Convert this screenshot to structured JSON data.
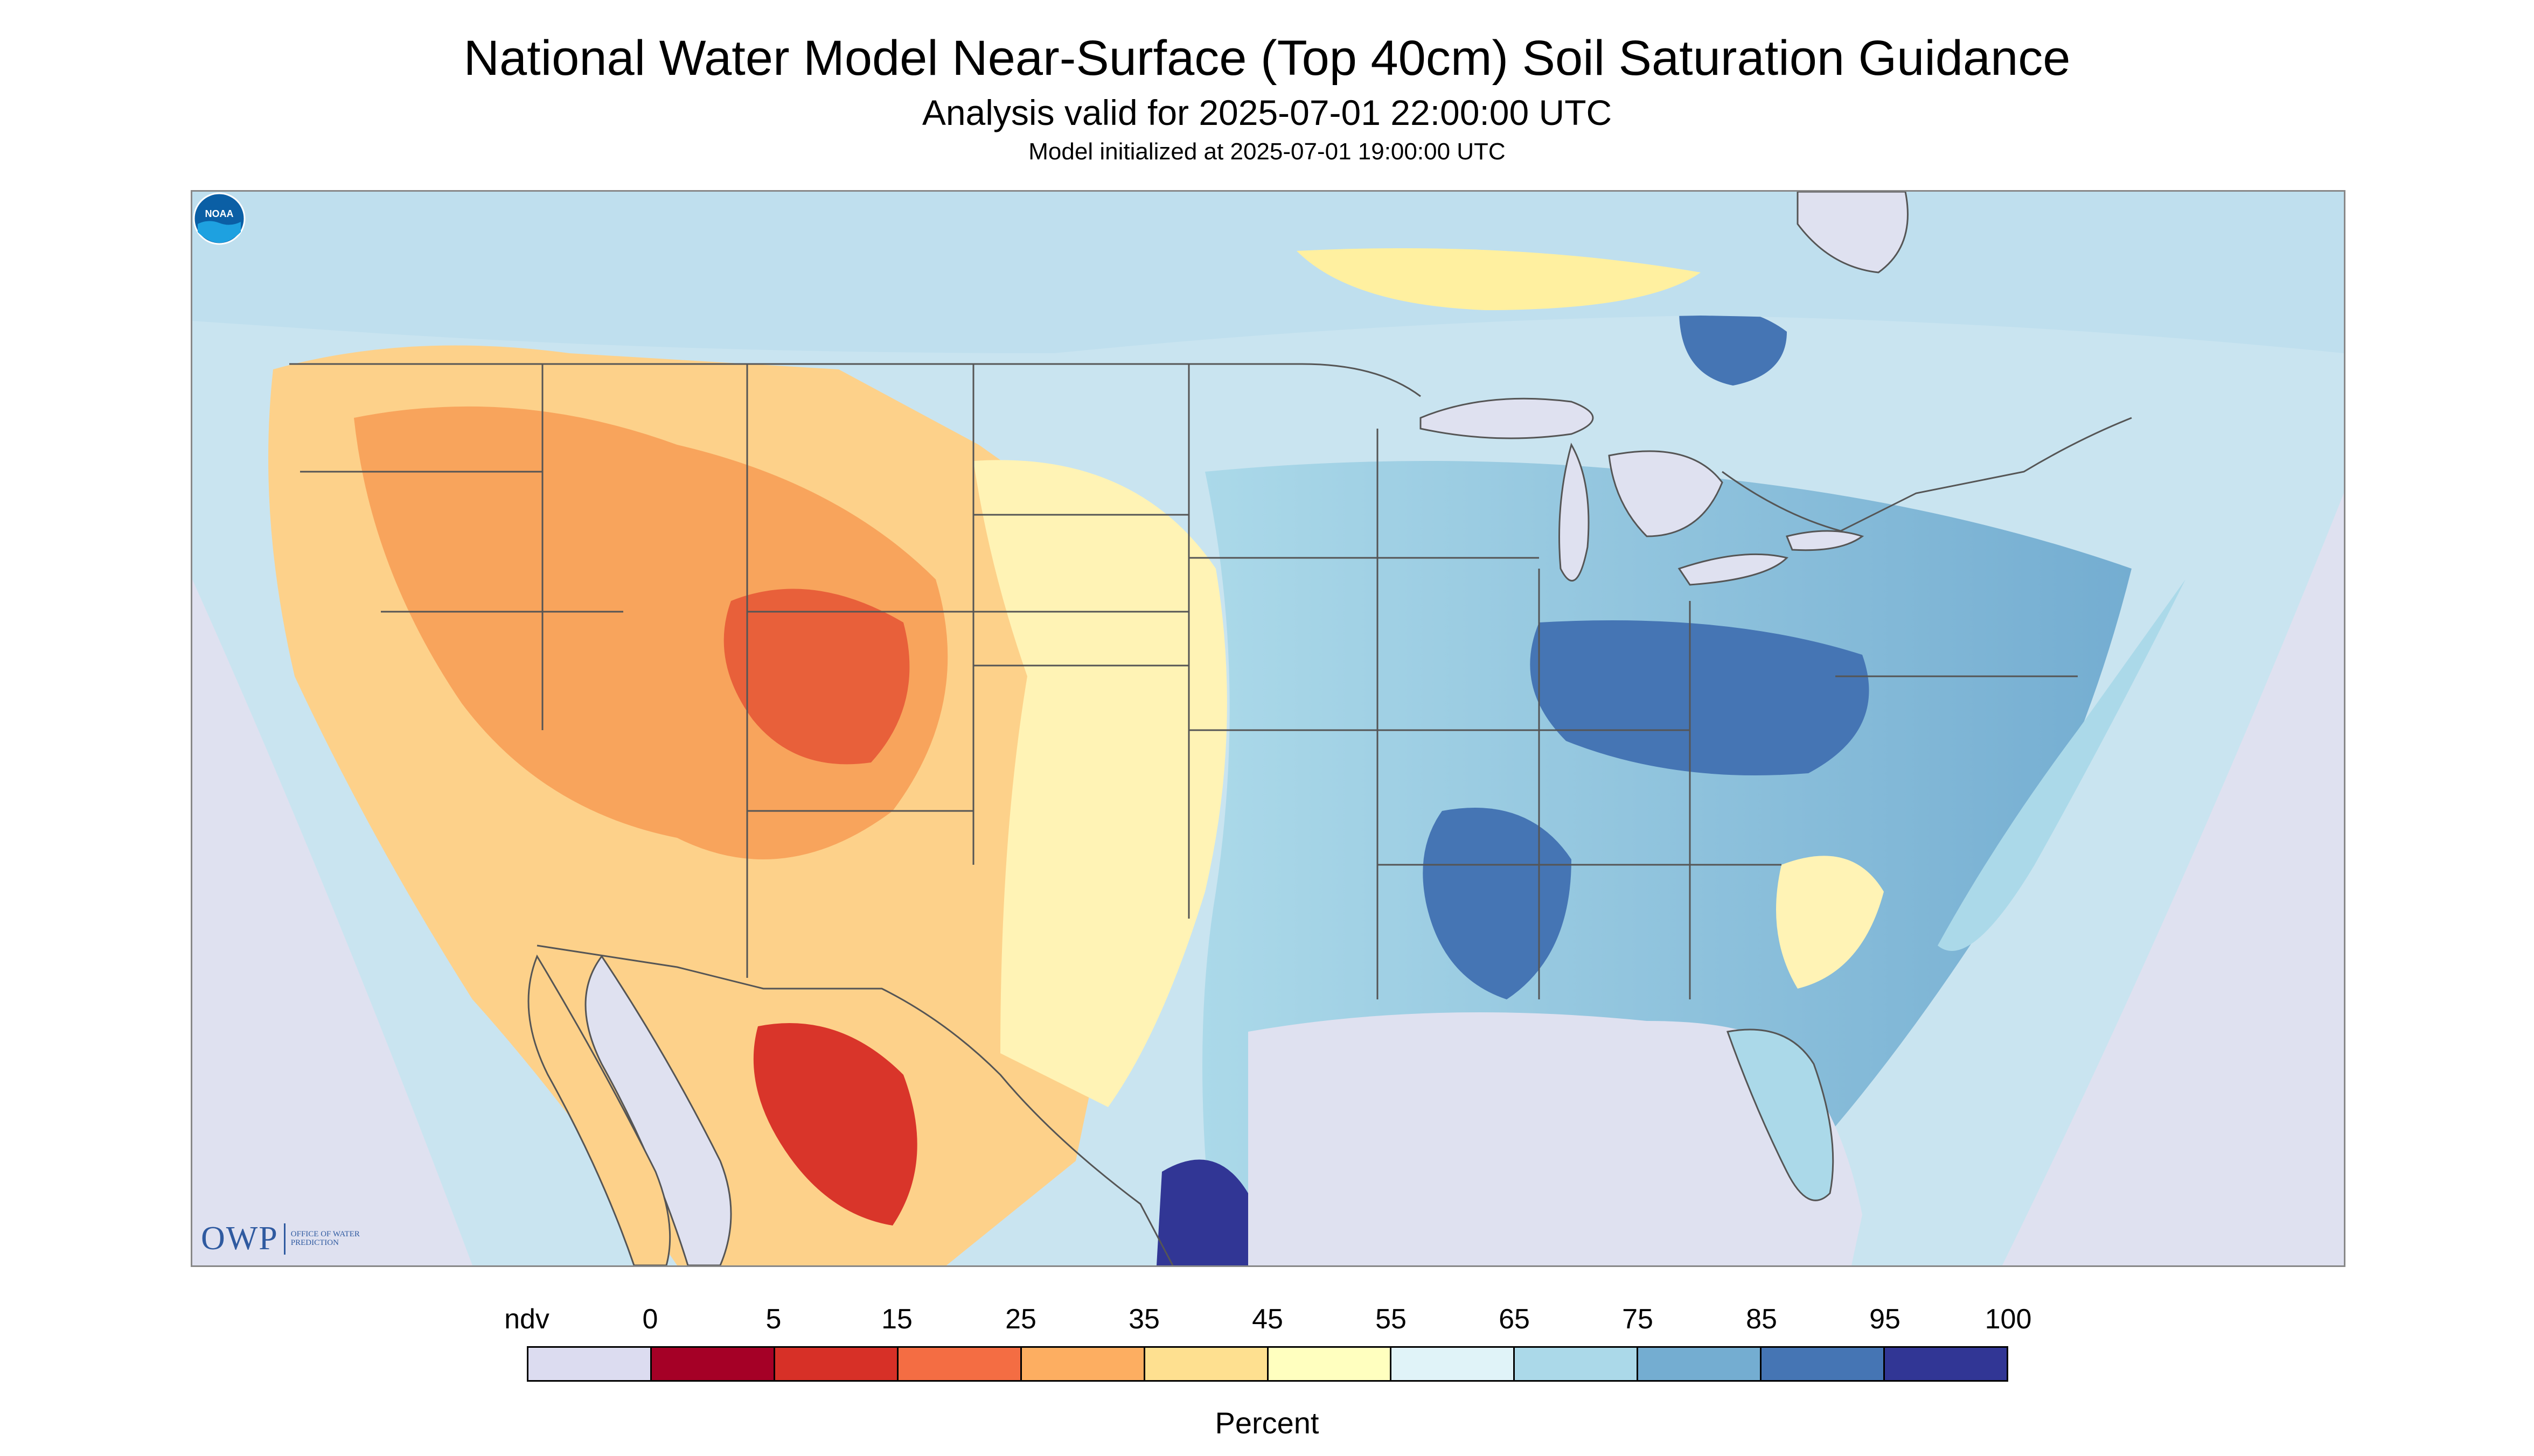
{
  "title": "National Water Model Near-Surface (Top 40cm) Soil Saturation Guidance",
  "subtitle": "Analysis valid for 2025-07-01 22:00:00 UTC",
  "init": "Model initialized at 2025-07-01 19:00:00 UTC",
  "logo": {
    "owp_mark": "OWP",
    "owp_text": "OFFICE OF WATER PREDICTION",
    "noaa_text": "NOAA"
  },
  "legend": {
    "labels": [
      "ndv",
      "0",
      "5",
      "15",
      "25",
      "35",
      "45",
      "55",
      "65",
      "75",
      "85",
      "95",
      "100"
    ],
    "colors": [
      "#dcdcf0",
      "#a50026",
      "#d73027",
      "#f46d43",
      "#fdae61",
      "#fee090",
      "#ffffbf",
      "#e0f3f8",
      "#abd9e9",
      "#74add1",
      "#4575b4",
      "#313695"
    ],
    "units": "Percent"
  },
  "map": {
    "no_data_color": "#dfe1f0",
    "water_color": "#dfe1f0",
    "border_color": "#555555"
  }
}
